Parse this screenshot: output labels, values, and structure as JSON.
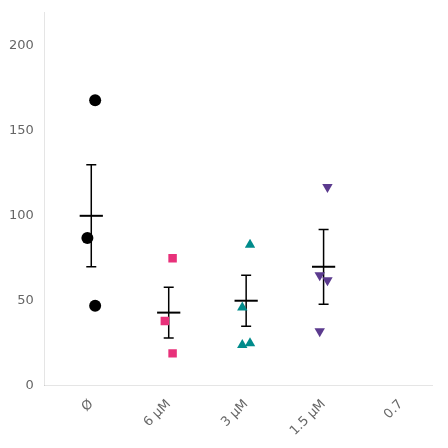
{
  "chart_data": {
    "type": "dot",
    "categories": [
      "Ø",
      "6 µM",
      "3 µM",
      "1.5 µM",
      "0.7"
    ],
    "values": [
      100,
      43,
      50,
      70,
      null
    ],
    "errors": [
      30,
      15,
      15,
      22,
      null
    ],
    "points": [
      [
        168,
        87,
        47
      ],
      [
        75,
        38,
        19
      ],
      [
        83,
        46,
        25,
        24
      ],
      [
        117,
        65,
        62,
        32
      ],
      null
    ],
    "colors": [
      "#000000",
      "#E8317A",
      "#008B8B",
      "#5B3A8E",
      null
    ],
    "markers": [
      "circle",
      "square",
      "triangle",
      "triangle_down",
      null
    ],
    "ylim": [
      0,
      220
    ],
    "yticks": [
      0,
      50,
      100,
      150,
      200
    ],
    "grid": false
  }
}
